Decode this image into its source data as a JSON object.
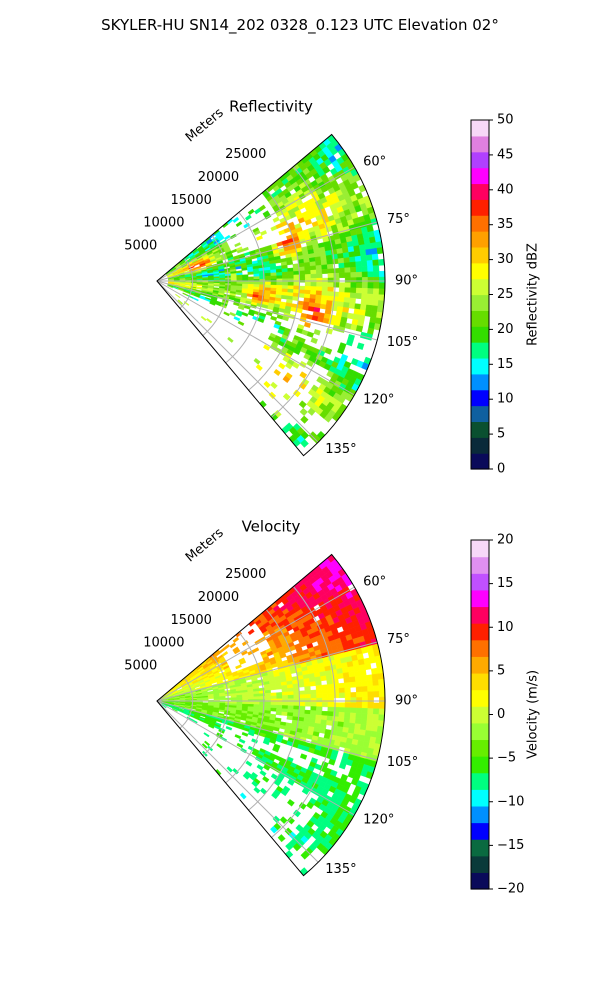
{
  "figure": {
    "title": "SKYLER-HU  SN14_202  0328_0.123 UTC Elevation 02°"
  },
  "chart_data": [
    {
      "type": "heatmap",
      "subtype": "polar-sector",
      "title": "Reflectivity",
      "range_label": "Meters",
      "range_ticks": [
        5000,
        10000,
        15000,
        20000,
        25000
      ],
      "range_max": 32000,
      "azimuth_min_deg": 50,
      "azimuth_max_deg": 140,
      "azimuth_ticks": [
        "60°",
        "75°",
        "90°",
        "105°",
        "120°",
        "135°"
      ],
      "azimuth_tick_values": [
        60,
        75,
        90,
        105,
        120,
        135
      ],
      "grid": true,
      "colorbar": {
        "label": "Reflectivity dBZ",
        "min": 0,
        "max": 50,
        "ticks": [
          "0",
          "5",
          "10",
          "15",
          "20",
          "25",
          "30",
          "35",
          "40",
          "45",
          "50"
        ],
        "colors": [
          "#0a0a5a",
          "#0a2a3a",
          "#0a5030",
          "#1060a0",
          "#0000ff",
          "#0090ff",
          "#00ffff",
          "#00ff80",
          "#33dd00",
          "#66dd00",
          "#99ee33",
          "#ccff33",
          "#ffff00",
          "#ffcc00",
          "#ffa000",
          "#ff7000",
          "#ff2000",
          "#ff0060",
          "#ff00ff",
          "#b040ff",
          "#e080e0",
          "#f8d8f8"
        ]
      },
      "field_features": [
        {
          "az": 75,
          "r": 0.6,
          "value": 33
        },
        {
          "az": 85,
          "r": 0.35,
          "value": 30
        },
        {
          "az": 98,
          "r": 0.45,
          "value": 34
        },
        {
          "az": 103,
          "r": 0.7,
          "value": 32
        },
        {
          "az": 70,
          "r": 0.2,
          "value": 36
        },
        {
          "az": 110,
          "r": 0.35,
          "value": 30
        }
      ]
    },
    {
      "type": "heatmap",
      "subtype": "polar-sector",
      "title": "Velocity",
      "range_label": "Meters",
      "range_ticks": [
        5000,
        10000,
        15000,
        20000,
        25000
      ],
      "range_max": 32000,
      "azimuth_min_deg": 50,
      "azimuth_max_deg": 140,
      "azimuth_ticks": [
        "60°",
        "75°",
        "90°",
        "105°",
        "120°",
        "135°"
      ],
      "azimuth_tick_values": [
        60,
        75,
        90,
        105,
        120,
        135
      ],
      "grid": true,
      "colorbar": {
        "label": "Velocity (m/s)",
        "min": -20,
        "max": 20,
        "ticks": [
          "−20",
          "−15",
          "−10",
          "−5",
          "0",
          "5",
          "10",
          "15",
          "20"
        ],
        "colors": [
          "#0a0a5a",
          "#0a3a3a",
          "#0a6a40",
          "#0000ff",
          "#0090ff",
          "#00ffff",
          "#00ff80",
          "#33ee00",
          "#66ee00",
          "#99ff33",
          "#ccff33",
          "#ffff00",
          "#ffdd00",
          "#ffaa00",
          "#ff7000",
          "#ff2000",
          "#ff0060",
          "#ff00ff",
          "#c050ff",
          "#e090f0",
          "#f8d8f8"
        ]
      }
    }
  ]
}
